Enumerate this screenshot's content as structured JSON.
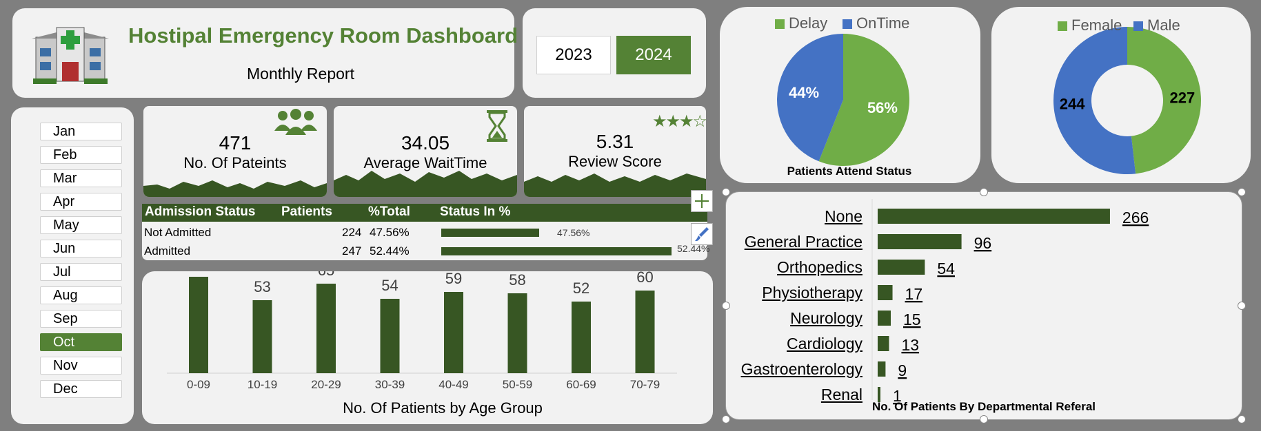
{
  "header": {
    "title": "Hostipal Emergency Room Dashboard",
    "subtitle": "Monthly Report"
  },
  "years": [
    {
      "label": "2023",
      "selected": false
    },
    {
      "label": "2024",
      "selected": true
    }
  ],
  "months": [
    {
      "label": "Jan",
      "selected": false
    },
    {
      "label": "Feb",
      "selected": false
    },
    {
      "label": "Mar",
      "selected": false
    },
    {
      "label": "Apr",
      "selected": false
    },
    {
      "label": "May",
      "selected": false
    },
    {
      "label": "Jun",
      "selected": false
    },
    {
      "label": "Jul",
      "selected": false
    },
    {
      "label": "Aug",
      "selected": false
    },
    {
      "label": "Sep",
      "selected": false
    },
    {
      "label": "Oct",
      "selected": true
    },
    {
      "label": "Nov",
      "selected": false
    },
    {
      "label": "Dec",
      "selected": false
    }
  ],
  "kpis": {
    "patients": {
      "value": "471",
      "label": "No. Of Pateints",
      "icon": "people-icon"
    },
    "waittime": {
      "value": "34.05",
      "label": "Average WaitTime",
      "icon": "hourglass-icon"
    },
    "review": {
      "value": "5.31",
      "label": "Review Score",
      "icon": "star-rating-icon",
      "stars_filled": 3,
      "stars_total": 4
    }
  },
  "admission_table": {
    "headers": [
      "Admission Status",
      "Patients",
      "%Total",
      "Status In %"
    ],
    "rows": [
      {
        "status": "Not Admitted",
        "patients": "224",
        "pct": "47.56%",
        "bar_label": "47.56%",
        "fraction": 0.4756
      },
      {
        "status": "Admitted",
        "patients": "247",
        "pct": "52.44%",
        "bar_label": "52.44%",
        "fraction": 0.5244
      }
    ]
  },
  "colors": {
    "accent_green": "#548235",
    "dark_green": "#375623",
    "light_green": "#70ad47",
    "blue": "#4472c4"
  },
  "chart_data": [
    {
      "type": "bar",
      "title": "No. Of Patients by Age Group",
      "categories": [
        "0-09",
        "10-19",
        "20-29",
        "30-39",
        "40-49",
        "50-59",
        "60-69",
        "70-79"
      ],
      "values": [
        70,
        53,
        65,
        54,
        59,
        58,
        52,
        60
      ],
      "ylim": [
        0,
        80
      ]
    },
    {
      "type": "pie",
      "title": "Patients Attend Status",
      "legend": "top",
      "slices": [
        {
          "name": "Delay",
          "value": 56,
          "label": "56%",
          "color": "#70ad47"
        },
        {
          "name": "OnTime",
          "value": 44,
          "label": "44%",
          "color": "#4472c4"
        }
      ]
    },
    {
      "type": "pie",
      "title": "",
      "donut": true,
      "legend": "top",
      "slices": [
        {
          "name": "Female",
          "value": 227,
          "label": "227",
          "color": "#70ad47"
        },
        {
          "name": "Male",
          "value": 244,
          "label": "244",
          "color": "#4472c4"
        }
      ]
    },
    {
      "type": "bar",
      "orientation": "horizontal",
      "title": "No. Of Patients By Departmental Referal",
      "categories": [
        "None",
        "General Practice",
        "Orthopedics",
        "Physiotherapy",
        "Neurology",
        "Cardiology",
        "Gastroenterology",
        "Renal"
      ],
      "values": [
        266,
        96,
        54,
        17,
        15,
        13,
        9,
        1
      ],
      "xlim": [
        0,
        300
      ]
    }
  ]
}
